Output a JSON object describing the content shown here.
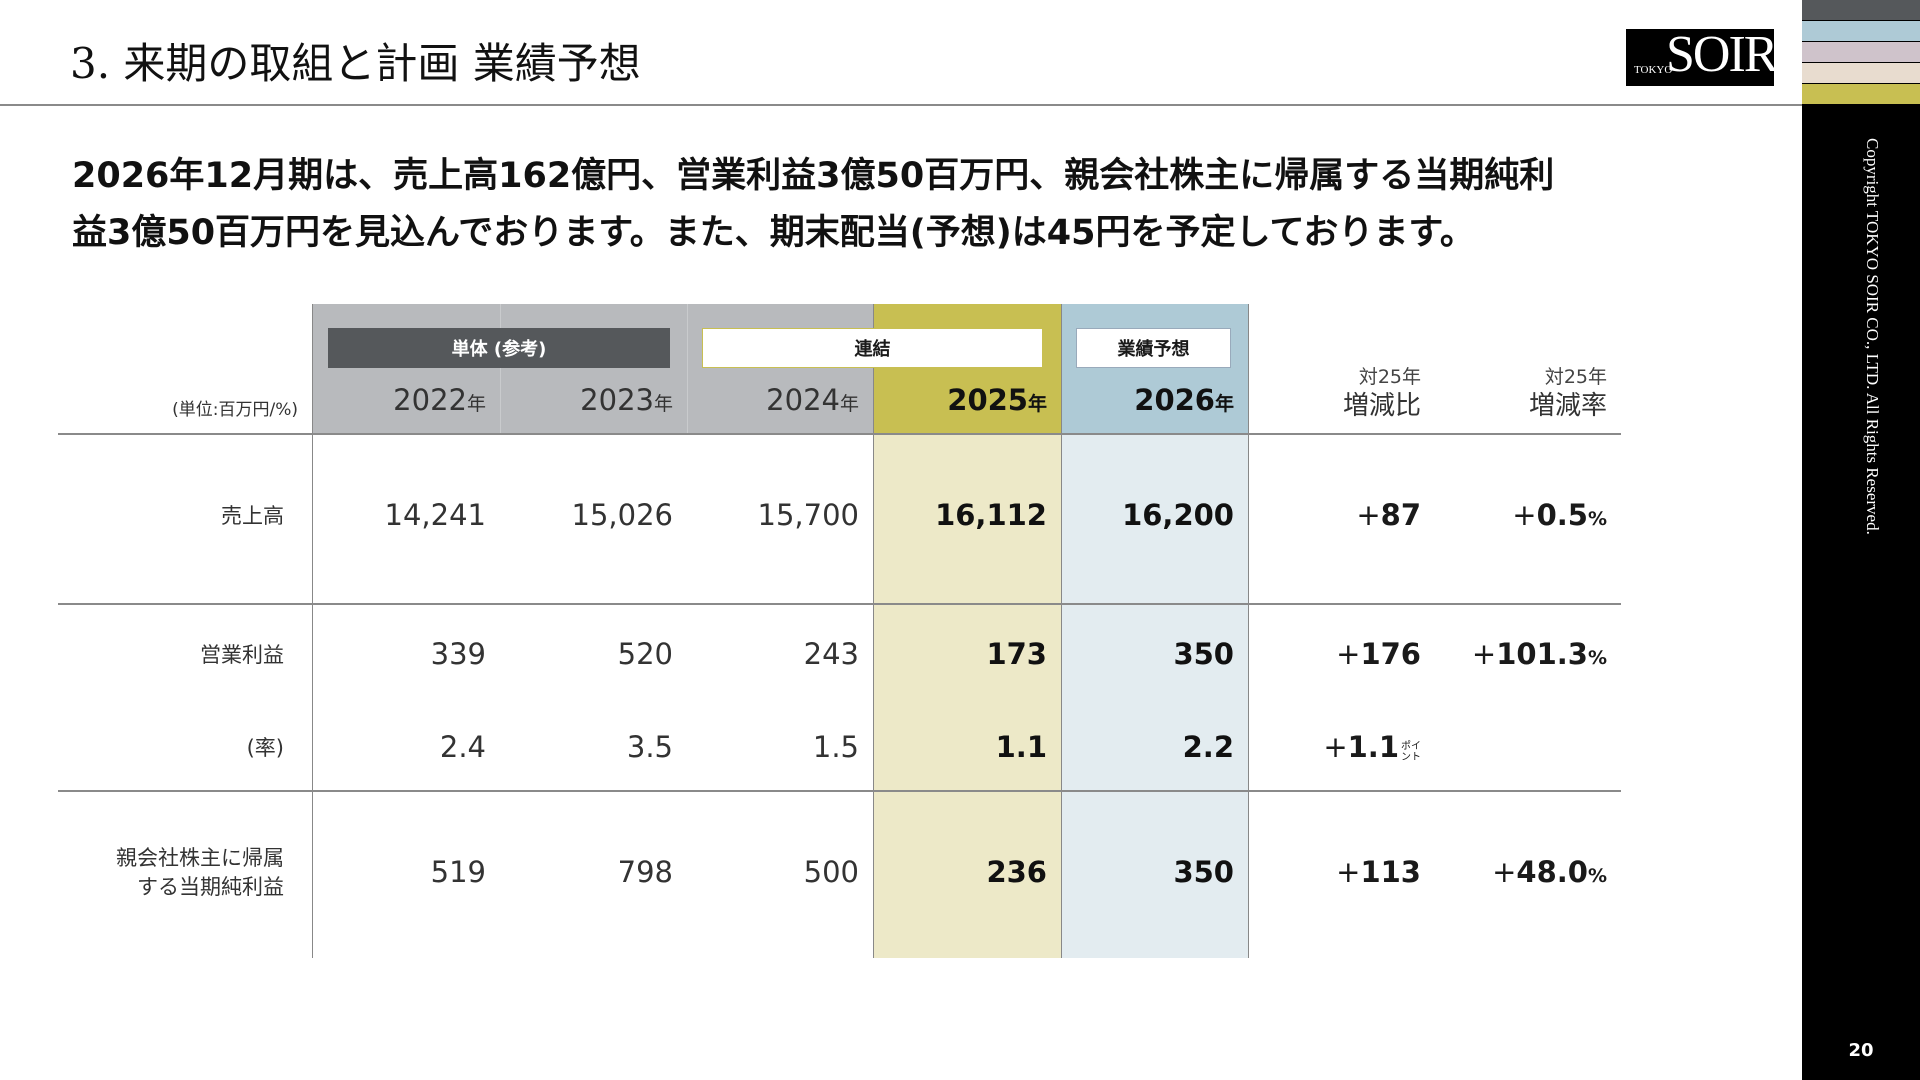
{
  "header": {
    "title": "3. 来期の取組と計画 業績予想",
    "logo": "TOKYO SOIR",
    "page_number": "20",
    "copyright": "Copyright TOKYO SOIR CO., LTD. All Rights Reserved."
  },
  "stripes": [
    "#55585b",
    "#aecad6",
    "#cfc3cb",
    "#e8dccf",
    "#c8bf52"
  ],
  "lead": [
    "2026年12月期は、売上高162億円、営業利益3億50百万円、親会社株主に帰属する当期純利",
    "益3億50百万円を見込んでおります。また、期末配当(予想)は45円を予定しております。"
  ],
  "table": {
    "unit": "(単位:百万円/%)",
    "groups": {
      "tantai": "単体 (参考)",
      "renketsu": "連結",
      "forecast": "業績予想"
    },
    "years": [
      {
        "y": "2022",
        "s": "年"
      },
      {
        "y": "2023",
        "s": "年"
      },
      {
        "y": "2024",
        "s": "年"
      },
      {
        "y": "2025",
        "s": "年"
      },
      {
        "y": "2026",
        "s": "年"
      }
    ],
    "diff_header": {
      "sub": "対25年",
      "main": "増減比"
    },
    "rate_header": {
      "sub": "対25年",
      "main": "増減率"
    },
    "rows": [
      {
        "label": "売上高",
        "values": [
          "14,241",
          "15,026",
          "15,700",
          "16,112",
          "16,200"
        ],
        "diff": "+87",
        "rate": "+0.5",
        "rate_unit": "%"
      },
      {
        "label": "営業利益",
        "values": [
          "339",
          "520",
          "243",
          "173",
          "350"
        ],
        "diff": "+176",
        "rate": "+101.3",
        "rate_unit": "%"
      },
      {
        "label": "(率)",
        "values": [
          "2.4",
          "3.5",
          "1.5",
          "1.1",
          "2.2"
        ],
        "diff": "+1.1",
        "diff_unit": "ポイント"
      },
      {
        "label": "親会社株主に帰属 する当期純利益",
        "values": [
          "519",
          "798",
          "500",
          "236",
          "350"
        ],
        "diff": "+113",
        "rate": "+48.0",
        "rate_unit": "%"
      }
    ]
  },
  "colors": {
    "gray_header": "#b8babd",
    "col2025_header": "#c8bf52",
    "col2025_body": "#ede9c8",
    "col2026_header": "#aecad6",
    "col2026_body": "#e3ecf0",
    "dark_box": "#55585b"
  }
}
